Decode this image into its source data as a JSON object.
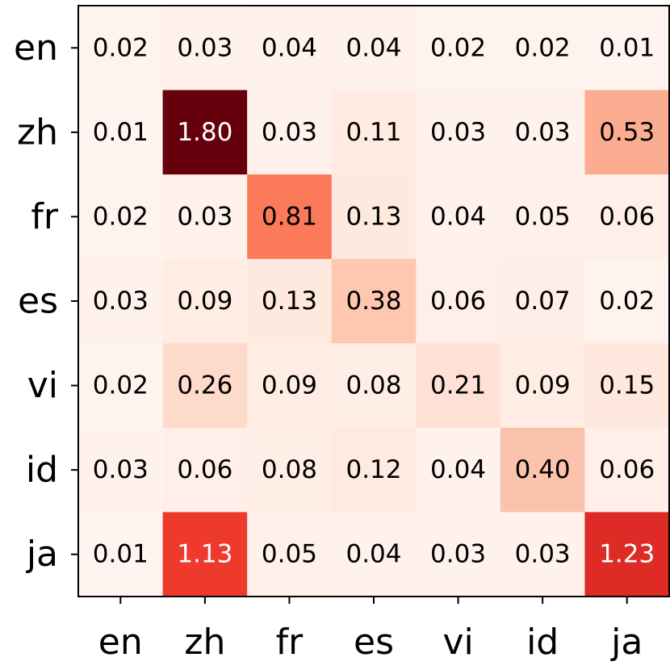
{
  "chart_data": {
    "type": "heatmap",
    "colormap": "Reds",
    "value_range": [
      0,
      1.8
    ],
    "x_labels": [
      "en",
      "zh",
      "fr",
      "es",
      "vi",
      "id",
      "ja"
    ],
    "y_labels": [
      "en",
      "zh",
      "fr",
      "es",
      "vi",
      "id",
      "ja"
    ],
    "values": [
      [
        0.02,
        0.03,
        0.04,
        0.04,
        0.02,
        0.02,
        0.01
      ],
      [
        0.01,
        1.8,
        0.03,
        0.11,
        0.03,
        0.03,
        0.53
      ],
      [
        0.02,
        0.03,
        0.81,
        0.13,
        0.04,
        0.05,
        0.06
      ],
      [
        0.03,
        0.09,
        0.13,
        0.38,
        0.06,
        0.07,
        0.02
      ],
      [
        0.02,
        0.26,
        0.09,
        0.08,
        0.21,
        0.09,
        0.15
      ],
      [
        0.03,
        0.06,
        0.08,
        0.12,
        0.04,
        0.4,
        0.06
      ],
      [
        0.01,
        1.13,
        0.05,
        0.04,
        0.03,
        0.03,
        1.23
      ]
    ],
    "cell_labels": [
      [
        "0.02",
        "0.03",
        "0.04",
        "0.04",
        "0.02",
        "0.02",
        "0.01"
      ],
      [
        "0.01",
        "1.80",
        "0.03",
        "0.11",
        "0.03",
        "0.03",
        "0.53"
      ],
      [
        "0.02",
        "0.03",
        "0.81",
        "0.13",
        "0.04",
        "0.05",
        "0.06"
      ],
      [
        "0.03",
        "0.09",
        "0.13",
        "0.38",
        "0.06",
        "0.07",
        "0.02"
      ],
      [
        "0.02",
        "0.26",
        "0.09",
        "0.08",
        "0.21",
        "0.09",
        "0.15"
      ],
      [
        "0.03",
        "0.06",
        "0.08",
        "0.12",
        "0.04",
        "0.40",
        "0.06"
      ],
      [
        "0.01",
        "1.13",
        "0.05",
        "0.04",
        "0.03",
        "0.03",
        "1.23"
      ]
    ],
    "grid": false,
    "legend": "none"
  }
}
